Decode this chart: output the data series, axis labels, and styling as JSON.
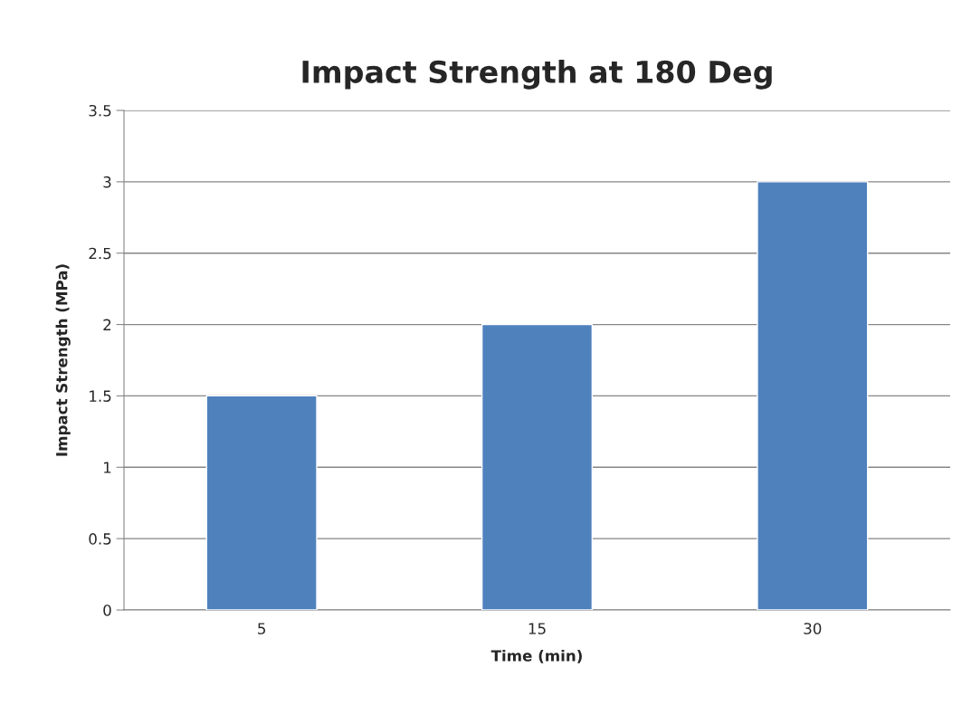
{
  "chart_data": {
    "type": "bar",
    "title": "Impact Strength at 180 Deg",
    "xlabel": "Time (min)",
    "ylabel": "Impact Strength (MPa)",
    "categories": [
      "5",
      "15",
      "30"
    ],
    "series": [
      {
        "color": "#4f81bd",
        "values": [
          1.5,
          2,
          3
        ]
      }
    ],
    "ylim": [
      0,
      3.5
    ],
    "yticks": [
      0,
      0.5,
      1,
      1.5,
      2,
      2.5,
      3,
      3.5
    ],
    "grid": "y"
  }
}
